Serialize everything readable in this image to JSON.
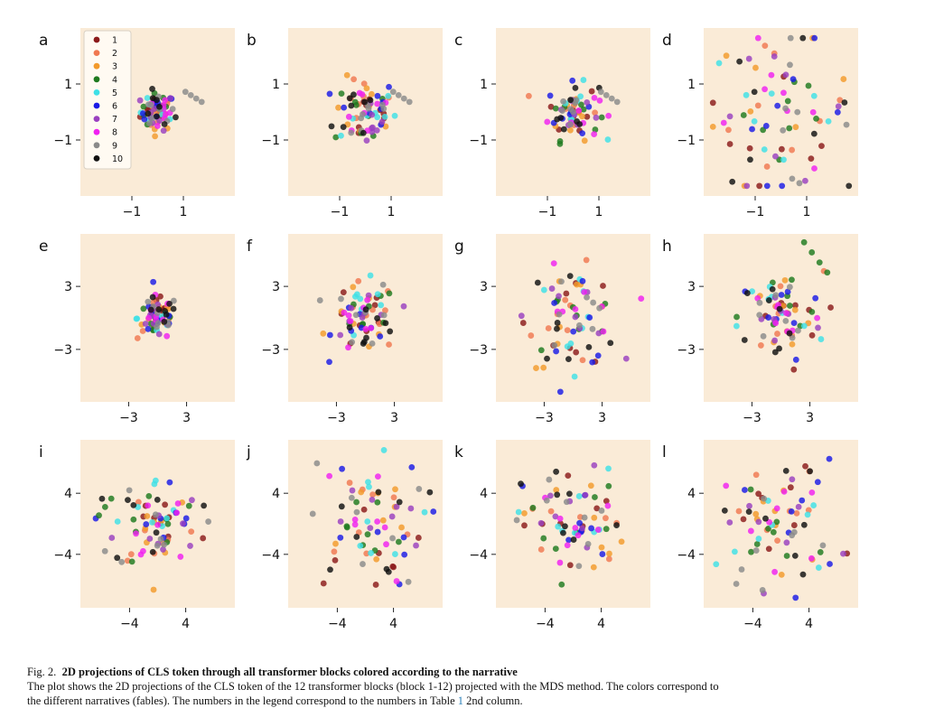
{
  "colors": {
    "panel_bg": "#faebd7",
    "narratives": [
      "#8b1a1a",
      "#f07850",
      "#f39a2b",
      "#1f7a1f",
      "#3ee0e6",
      "#1a1ae6",
      "#9a40c0",
      "#f020f0",
      "#8a8a8a",
      "#101010"
    ]
  },
  "legend": {
    "labels": [
      "1",
      "2",
      "3",
      "4",
      "5",
      "6",
      "7",
      "8",
      "9",
      "10"
    ]
  },
  "caption": {
    "lead": "Fig. 2.",
    "title": "2D projections of CLS token through all transformer blocks colored according to the narrative",
    "body_1": "The plot shows the 2D projections of the CLS token of the 12 transformer blocks (block 1-12) projected with the MDS method. The colors correspond to",
    "body_2a": "the different narratives (fables). The numbers in the legend correspond to the numbers in Table",
    "table_ref": "1",
    "body_2b": "2nd column."
  },
  "chart_data": [
    {
      "type": "scatter",
      "panel": "a",
      "xticks": [
        -1,
        1
      ],
      "yticks": [
        -1,
        1
      ],
      "xlim": [
        -3,
        3
      ],
      "ylim": [
        -3,
        3
      ],
      "spread": 0.6,
      "outlier": "grey-right",
      "series": [
        {
          "name": "1"
        },
        {
          "name": "2"
        },
        {
          "name": "3"
        },
        {
          "name": "4"
        },
        {
          "name": "5"
        },
        {
          "name": "6"
        },
        {
          "name": "7"
        },
        {
          "name": "8"
        },
        {
          "name": "9"
        },
        {
          "name": "10"
        }
      ]
    },
    {
      "type": "scatter",
      "panel": "b",
      "xticks": [
        -1,
        1
      ],
      "yticks": [
        -1,
        1
      ],
      "xlim": [
        -3,
        3
      ],
      "ylim": [
        -3,
        3
      ],
      "spread": 1.1,
      "outlier": "grey-right"
    },
    {
      "type": "scatter",
      "panel": "c",
      "xticks": [
        -1,
        1
      ],
      "yticks": [
        -1,
        1
      ],
      "xlim": [
        -3,
        3
      ],
      "ylim": [
        -3,
        3
      ],
      "spread": 0.9,
      "outlier": "grey-right"
    },
    {
      "type": "scatter",
      "panel": "d",
      "xticks": [
        -1,
        1
      ],
      "yticks": [
        -1,
        1
      ],
      "xlim": [
        -3,
        3
      ],
      "ylim": [
        -3,
        3
      ],
      "spread": 2.5,
      "outlier": "none"
    },
    {
      "type": "scatter",
      "panel": "e",
      "xticks": [
        -3,
        3
      ],
      "yticks": [
        -3,
        3
      ],
      "xlim": [
        -8,
        8
      ],
      "ylim": [
        -8,
        8
      ],
      "spread": 1.9,
      "outlier": "none"
    },
    {
      "type": "scatter",
      "panel": "f",
      "xticks": [
        -3,
        3
      ],
      "yticks": [
        -3,
        3
      ],
      "xlim": [
        -8,
        8
      ],
      "ylim": [
        -8,
        8
      ],
      "spread": 3.0,
      "outlier": "none"
    },
    {
      "type": "scatter",
      "panel": "g",
      "xticks": [
        -3,
        3
      ],
      "yticks": [
        -3,
        3
      ],
      "xlim": [
        -8,
        8
      ],
      "ylim": [
        -8,
        8
      ],
      "spread": 4.2,
      "outlier": "none"
    },
    {
      "type": "scatter",
      "panel": "h",
      "xticks": [
        -3,
        3
      ],
      "yticks": [
        -3,
        3
      ],
      "xlim": [
        -8,
        8
      ],
      "ylim": [
        -8,
        8
      ],
      "spread": 4.0,
      "outlier": "green-top-right"
    },
    {
      "type": "scatter",
      "panel": "i",
      "xticks": [
        -4,
        4
      ],
      "yticks": [
        -4,
        4
      ],
      "xlim": [
        -11,
        11
      ],
      "ylim": [
        -11,
        11
      ],
      "spread": 5.5,
      "outlier": "green-left"
    },
    {
      "type": "scatter",
      "panel": "j",
      "xticks": [
        -4,
        4
      ],
      "yticks": [
        -4,
        4
      ],
      "xlim": [
        -11,
        11
      ],
      "ylim": [
        -11,
        11
      ],
      "spread": 7.5,
      "outlier": "none"
    },
    {
      "type": "scatter",
      "panel": "k",
      "xticks": [
        -4,
        4
      ],
      "yticks": [
        -4,
        4
      ],
      "xlim": [
        -11,
        11
      ],
      "ylim": [
        -11,
        11
      ],
      "spread": 6.5,
      "outlier": "none"
    },
    {
      "type": "scatter",
      "panel": "l",
      "xticks": [
        -4,
        4
      ],
      "yticks": [
        -4,
        4
      ],
      "xlim": [
        -11,
        11
      ],
      "ylim": [
        -11,
        11
      ],
      "spread": 7.5,
      "outlier": "none"
    }
  ]
}
